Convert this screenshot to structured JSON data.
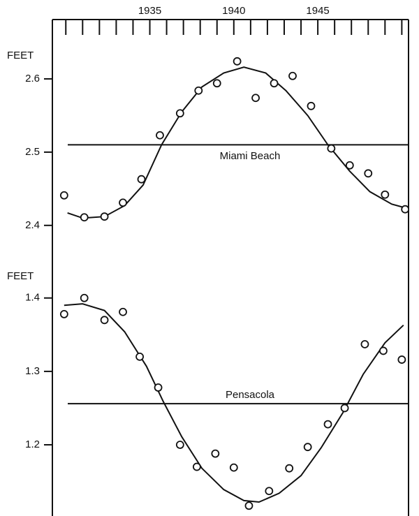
{
  "chart_data": [
    {
      "type": "scatter",
      "annotation": "Miami Beach",
      "ylabel": "FEET",
      "xlim": [
        1929.2,
        1950.4
      ],
      "xticks": [
        1935,
        1940,
        1945
      ],
      "minor_xticks": [
        1930,
        1931,
        1932,
        1933,
        1934,
        1935,
        1936,
        1937,
        1938,
        1939,
        1940,
        1941,
        1942,
        1943,
        1944,
        1945,
        1946,
        1947,
        1948,
        1949,
        1950
      ],
      "ylim": [
        2.355,
        2.681
      ],
      "yticks": [
        2.4,
        2.5,
        2.6
      ],
      "color": "#111111",
      "observed": {
        "x": [
          1929.9,
          1931.1,
          1932.3,
          1933.4,
          1934.5,
          1935.6,
          1936.8,
          1937.9,
          1939.0,
          1940.2,
          1941.3,
          1942.4,
          1943.5,
          1944.6,
          1945.8,
          1946.9,
          1948.0,
          1949.0,
          1950.2
        ],
        "values": [
          2.441,
          2.411,
          2.412,
          2.431,
          2.463,
          2.523,
          2.553,
          2.584,
          2.594,
          2.624,
          2.574,
          2.594,
          2.604,
          2.563,
          2.505,
          2.482,
          2.471,
          2.442,
          2.422
        ]
      },
      "fit": {
        "x": [
          1930.1,
          1931.0,
          1932.3,
          1933.5,
          1934.6,
          1935.7,
          1936.9,
          1938.1,
          1939.4,
          1940.6,
          1941.9,
          1943.1,
          1944.4,
          1945.6,
          1946.9,
          1948.1,
          1949.4,
          1950.2
        ],
        "values": [
          2.417,
          2.41,
          2.412,
          2.427,
          2.455,
          2.51,
          2.555,
          2.589,
          2.608,
          2.616,
          2.608,
          2.584,
          2.55,
          2.51,
          2.474,
          2.446,
          2.429,
          2.424
        ]
      },
      "mean": 2.51
    },
    {
      "type": "scatter",
      "annotation": "Pensacola",
      "ylabel": "FEET",
      "xlim": [
        1929.2,
        1950.4
      ],
      "ylim": [
        1.103,
        1.454
      ],
      "yticks": [
        1.2,
        1.3,
        1.4
      ],
      "color": "#111111",
      "observed": {
        "x": [
          1929.9,
          1931.1,
          1932.3,
          1933.4,
          1934.4,
          1935.5,
          1936.8,
          1937.8,
          1938.9,
          1940.0,
          1940.9,
          1942.1,
          1943.3,
          1944.4,
          1945.6,
          1946.6,
          1947.8,
          1948.9,
          1950.0
        ],
        "values": [
          1.378,
          1.4,
          1.37,
          1.381,
          1.32,
          1.278,
          1.2,
          1.17,
          1.188,
          1.169,
          1.117,
          1.137,
          1.168,
          1.197,
          1.228,
          1.25,
          1.337,
          1.328,
          1.316
        ]
      },
      "fit": {
        "x": [
          1929.9,
          1931.0,
          1932.3,
          1933.5,
          1934.8,
          1935.8,
          1936.9,
          1938.1,
          1939.4,
          1940.6,
          1941.5,
          1942.7,
          1944.0,
          1945.2,
          1946.5,
          1947.7,
          1949.0,
          1950.1
        ],
        "values": [
          1.39,
          1.392,
          1.383,
          1.354,
          1.307,
          1.259,
          1.211,
          1.168,
          1.139,
          1.124,
          1.122,
          1.134,
          1.158,
          1.196,
          1.244,
          1.296,
          1.339,
          1.363
        ]
      },
      "mean": 1.256
    }
  ]
}
